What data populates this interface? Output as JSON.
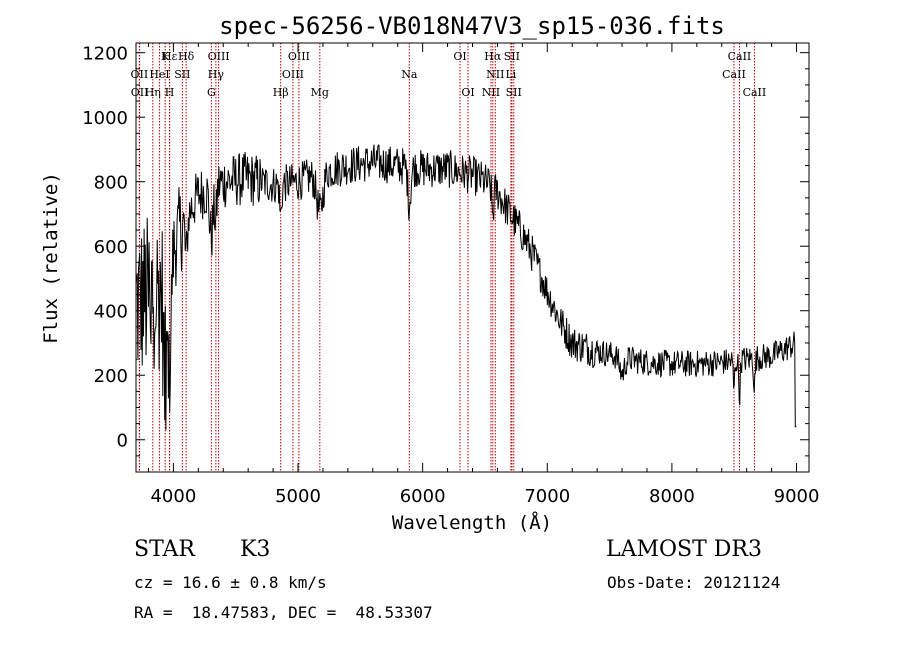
{
  "chart_data": {
    "type": "line",
    "title": "spec-56256-VB018N47V3_sp15-036.fits",
    "xlabel": "Wavelength (Å)",
    "ylabel": "Flux (relative)",
    "xlim": [
      3700,
      9100
    ],
    "ylim": [
      -100,
      1230
    ],
    "xticks": [
      4000,
      5000,
      6000,
      7000,
      8000,
      9000
    ],
    "yticks": [
      0,
      200,
      400,
      600,
      800,
      1000,
      1200
    ],
    "continuum": [
      [
        3700,
        420
      ],
      [
        3900,
        470
      ],
      [
        4050,
        650
      ],
      [
        4200,
        760
      ],
      [
        4400,
        800
      ],
      [
        4600,
        810
      ],
      [
        4800,
        790
      ],
      [
        5000,
        800
      ],
      [
        5200,
        830
      ],
      [
        5400,
        850
      ],
      [
        5600,
        860
      ],
      [
        5800,
        850
      ],
      [
        6000,
        840
      ],
      [
        6200,
        840
      ],
      [
        6400,
        820
      ],
      [
        6500,
        800
      ],
      [
        6600,
        770
      ],
      [
        6700,
        700
      ],
      [
        6800,
        640
      ],
      [
        6900,
        560
      ],
      [
        7000,
        460
      ],
      [
        7100,
        370
      ],
      [
        7200,
        300
      ],
      [
        7400,
        275
      ],
      [
        7600,
        255
      ],
      [
        7800,
        240
      ],
      [
        8000,
        235
      ],
      [
        8200,
        235
      ],
      [
        8400,
        240
      ],
      [
        8600,
        250
      ],
      [
        8800,
        260
      ],
      [
        9000,
        300
      ]
    ],
    "spectral_lines": [
      {
        "name": "Hε",
        "wavelength": 3970,
        "row": 0
      },
      {
        "name": "K",
        "wavelength": 3934,
        "row": 0
      },
      {
        "name": "Hδ",
        "wavelength": 4102,
        "row": 0
      },
      {
        "name": "OII",
        "wavelength": 3727,
        "row": 1
      },
      {
        "name": "HeI",
        "wavelength": 3889,
        "row": 1
      },
      {
        "name": "SII",
        "wavelength": 4072,
        "row": 1
      },
      {
        "name": "OII",
        "wavelength": 3729,
        "row": 2
      },
      {
        "name": "Hη",
        "wavelength": 3835,
        "row": 2
      },
      {
        "name": "H",
        "wavelength": 3969,
        "row": 2
      },
      {
        "name": "OIII",
        "wavelength": 4363,
        "row": 0
      },
      {
        "name": "Hγ",
        "wavelength": 4341,
        "row": 1
      },
      {
        "name": "G",
        "wavelength": 4305,
        "row": 2
      },
      {
        "name": "Hβ",
        "wavelength": 4861,
        "row": 2
      },
      {
        "name": "OIII",
        "wavelength": 5007,
        "row": 0
      },
      {
        "name": "OIII",
        "wavelength": 4959,
        "row": 1
      },
      {
        "name": "Mg",
        "wavelength": 5175,
        "row": 2
      },
      {
        "name": "Na",
        "wavelength": 5893,
        "row": 1
      },
      {
        "name": "OI",
        "wavelength": 6300,
        "row": 0
      },
      {
        "name": "OI",
        "wavelength": 6364,
        "row": 2
      },
      {
        "name": "Hα",
        "wavelength": 6563,
        "row": 0
      },
      {
        "name": "SII",
        "wavelength": 6716,
        "row": 0
      },
      {
        "name": "NII",
        "wavelength": 6583,
        "row": 1
      },
      {
        "name": "Li",
        "wavelength": 6708,
        "row": 1
      },
      {
        "name": "NII",
        "wavelength": 6548,
        "row": 2
      },
      {
        "name": "SII",
        "wavelength": 6731,
        "row": 2
      },
      {
        "name": "CaII",
        "wavelength": 8542,
        "row": 0
      },
      {
        "name": "CaII",
        "wavelength": 8498,
        "row": 1
      },
      {
        "name": "CaII",
        "wavelength": 8662,
        "row": 2
      }
    ]
  },
  "info": {
    "class": "STAR",
    "subclass": "K3",
    "survey": "LAMOST DR3",
    "cz": "cz = 16.6 ± 0.8 km/s",
    "obs_date": "Obs-Date: 20121124",
    "coords": "RA =  18.47583, DEC =  48.53307"
  },
  "colors": {
    "line_marker": "#c00000",
    "spectrum": "#000000"
  }
}
